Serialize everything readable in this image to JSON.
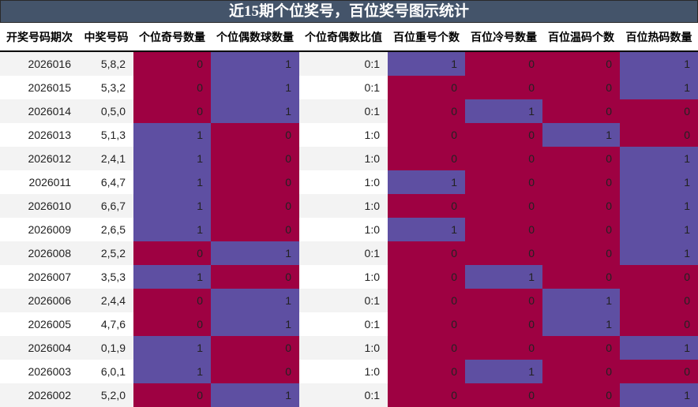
{
  "title": "近15期个位奖号，百位奖号图示统计",
  "colors": {
    "zero": "#9e0142",
    "one": "#5e4fa2",
    "title_bg": "#44546a"
  },
  "headers": [
    "开奖号码期次",
    "中奖号码",
    "个位奇号数量",
    "个位偶数球数量",
    "个位奇偶数比值",
    "百位重号个数",
    "百位冷号数量",
    "百位温码个数",
    "百位热码数量"
  ],
  "rows": [
    {
      "issue": "2026016",
      "number": "5,8,2",
      "odd": "0",
      "even": "1",
      "ratio": "0:1",
      "repeat": "1",
      "cold": "0",
      "warm": "0",
      "hot": "1"
    },
    {
      "issue": "2026015",
      "number": "5,3,2",
      "odd": "0",
      "even": "1",
      "ratio": "0:1",
      "repeat": "0",
      "cold": "0",
      "warm": "0",
      "hot": "1"
    },
    {
      "issue": "2026014",
      "number": "0,5,0",
      "odd": "0",
      "even": "1",
      "ratio": "0:1",
      "repeat": "0",
      "cold": "1",
      "warm": "0",
      "hot": "0"
    },
    {
      "issue": "2026013",
      "number": "5,1,3",
      "odd": "1",
      "even": "0",
      "ratio": "1:0",
      "repeat": "0",
      "cold": "0",
      "warm": "1",
      "hot": "0"
    },
    {
      "issue": "2026012",
      "number": "2,4,1",
      "odd": "1",
      "even": "0",
      "ratio": "1:0",
      "repeat": "0",
      "cold": "0",
      "warm": "0",
      "hot": "1"
    },
    {
      "issue": "2026011",
      "number": "6,4,7",
      "odd": "1",
      "even": "0",
      "ratio": "1:0",
      "repeat": "1",
      "cold": "0",
      "warm": "0",
      "hot": "1"
    },
    {
      "issue": "2026010",
      "number": "6,6,7",
      "odd": "1",
      "even": "0",
      "ratio": "1:0",
      "repeat": "0",
      "cold": "0",
      "warm": "0",
      "hot": "1"
    },
    {
      "issue": "2026009",
      "number": "2,6,5",
      "odd": "1",
      "even": "0",
      "ratio": "1:0",
      "repeat": "1",
      "cold": "0",
      "warm": "0",
      "hot": "1"
    },
    {
      "issue": "2026008",
      "number": "2,5,2",
      "odd": "0",
      "even": "1",
      "ratio": "0:1",
      "repeat": "0",
      "cold": "0",
      "warm": "0",
      "hot": "1"
    },
    {
      "issue": "2026007",
      "number": "3,5,3",
      "odd": "1",
      "even": "0",
      "ratio": "1:0",
      "repeat": "0",
      "cold": "1",
      "warm": "0",
      "hot": "0"
    },
    {
      "issue": "2026006",
      "number": "2,4,4",
      "odd": "0",
      "even": "1",
      "ratio": "0:1",
      "repeat": "0",
      "cold": "0",
      "warm": "1",
      "hot": "0"
    },
    {
      "issue": "2026005",
      "number": "4,7,6",
      "odd": "0",
      "even": "1",
      "ratio": "0:1",
      "repeat": "0",
      "cold": "0",
      "warm": "1",
      "hot": "0"
    },
    {
      "issue": "2026004",
      "number": "0,1,9",
      "odd": "1",
      "even": "0",
      "ratio": "1:0",
      "repeat": "0",
      "cold": "0",
      "warm": "0",
      "hot": "1"
    },
    {
      "issue": "2026003",
      "number": "6,0,1",
      "odd": "1",
      "even": "0",
      "ratio": "1:0",
      "repeat": "0",
      "cold": "1",
      "warm": "0",
      "hot": "0"
    },
    {
      "issue": "2026002",
      "number": "5,2,0",
      "odd": "0",
      "even": "1",
      "ratio": "0:1",
      "repeat": "0",
      "cold": "0",
      "warm": "0",
      "hot": "1"
    }
  ],
  "chart_data": {
    "type": "heatmap",
    "title": "近15期个位奖号，百位奖号图示统计",
    "columns": [
      "开奖号码期次",
      "中奖号码",
      "个位奇号数量",
      "个位偶数球数量",
      "个位奇偶数比值",
      "百位重号个数",
      "百位冷号数量",
      "百位温码个数",
      "百位热码数量"
    ],
    "categories": [
      "2026016",
      "2026015",
      "2026014",
      "2026013",
      "2026012",
      "2026011",
      "2026010",
      "2026009",
      "2026008",
      "2026007",
      "2026006",
      "2026005",
      "2026004",
      "2026003",
      "2026002"
    ],
    "winning_numbers": [
      "5,8,2",
      "5,3,2",
      "0,5,0",
      "5,1,3",
      "2,4,1",
      "6,4,7",
      "6,6,7",
      "2,6,5",
      "2,5,2",
      "3,5,3",
      "2,4,4",
      "4,7,6",
      "0,1,9",
      "6,0,1",
      "5,2,0"
    ],
    "ratios": [
      "0:1",
      "0:1",
      "0:1",
      "1:0",
      "1:0",
      "1:0",
      "1:0",
      "1:0",
      "0:1",
      "1:0",
      "0:1",
      "0:1",
      "1:0",
      "1:0",
      "0:1"
    ],
    "series": [
      {
        "name": "个位奇号数量",
        "values": [
          0,
          0,
          0,
          1,
          1,
          1,
          1,
          1,
          0,
          1,
          0,
          0,
          1,
          1,
          0
        ]
      },
      {
        "name": "个位偶数球数量",
        "values": [
          1,
          1,
          1,
          0,
          0,
          0,
          0,
          0,
          1,
          0,
          1,
          1,
          0,
          0,
          1
        ]
      },
      {
        "name": "百位重号个数",
        "values": [
          1,
          0,
          0,
          0,
          0,
          1,
          0,
          1,
          0,
          0,
          0,
          0,
          0,
          0,
          0
        ]
      },
      {
        "name": "百位冷号数量",
        "values": [
          0,
          0,
          1,
          0,
          0,
          0,
          0,
          0,
          0,
          1,
          0,
          0,
          0,
          1,
          0
        ]
      },
      {
        "name": "百位温码个数",
        "values": [
          0,
          0,
          0,
          1,
          0,
          0,
          0,
          0,
          0,
          0,
          1,
          1,
          0,
          0,
          0
        ]
      },
      {
        "name": "百位热码数量",
        "values": [
          1,
          1,
          0,
          0,
          1,
          1,
          1,
          1,
          1,
          0,
          0,
          0,
          1,
          0,
          1
        ]
      }
    ],
    "color_scale": {
      "0": "#9e0142",
      "1": "#5e4fa2"
    },
    "legend": "none",
    "grid": false
  }
}
